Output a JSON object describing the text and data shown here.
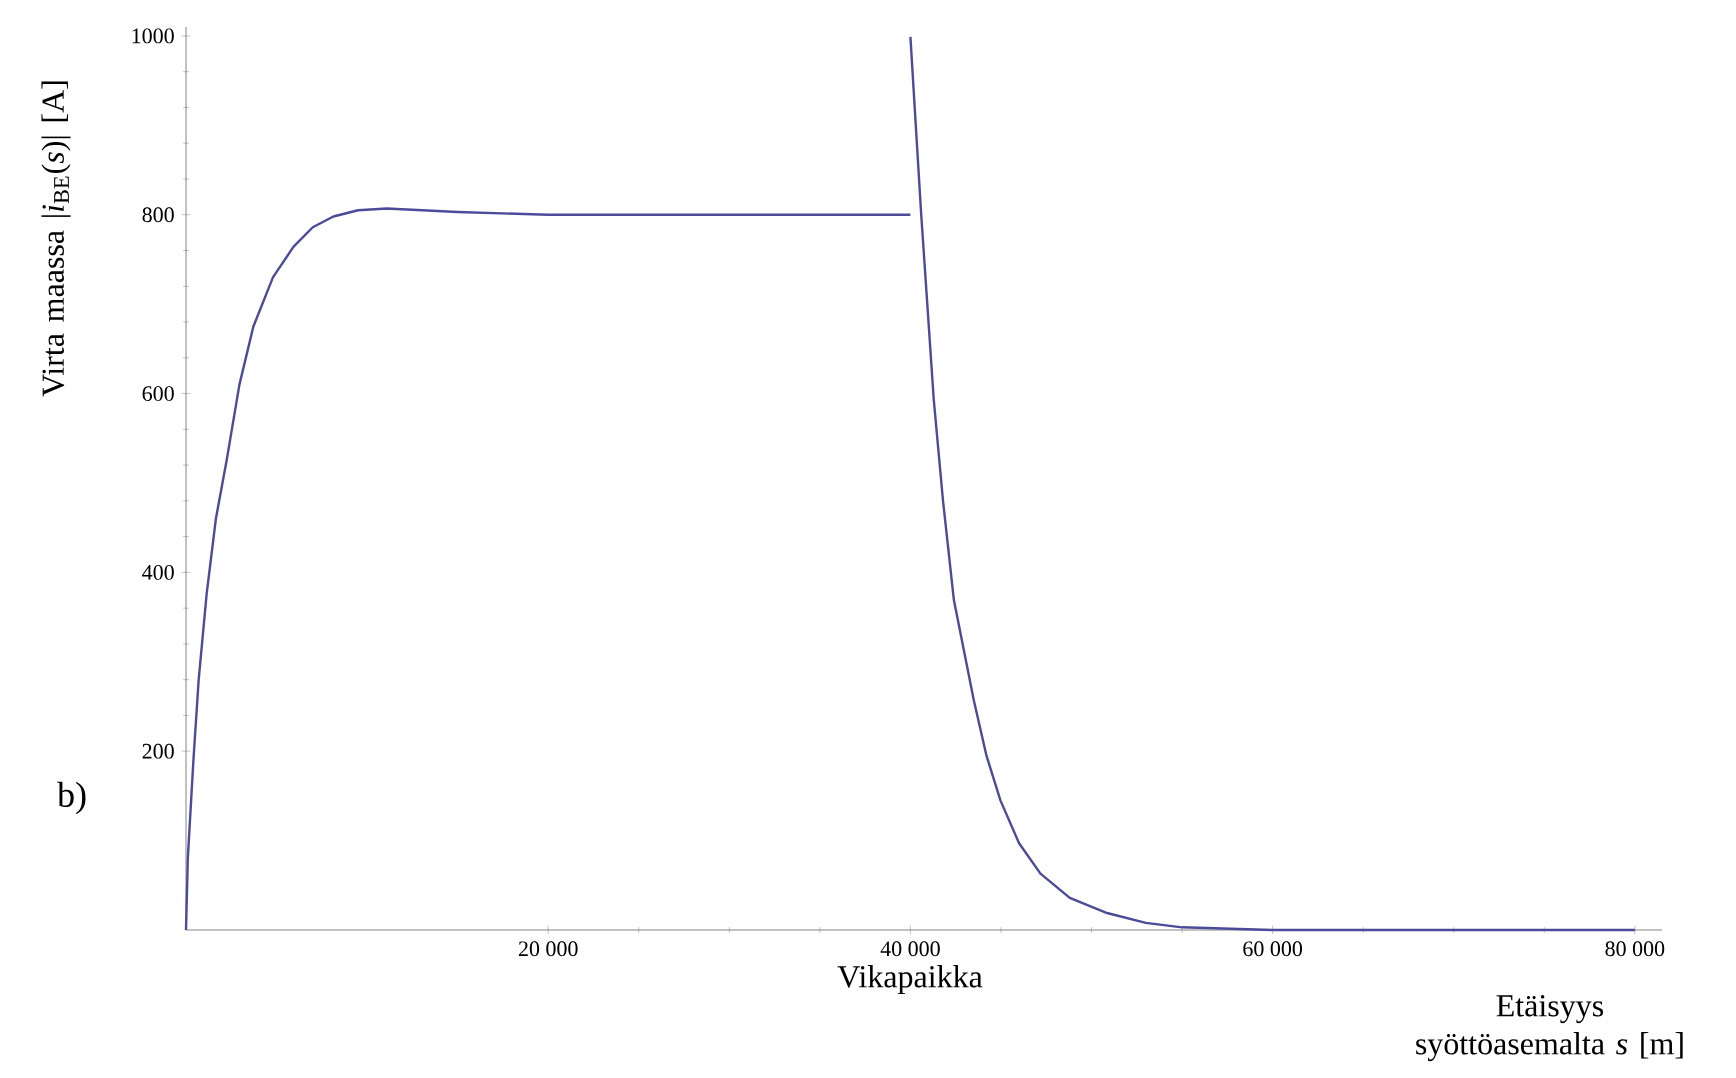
{
  "chart_data": {
    "type": "line",
    "ylabel": "Virta maassa |*i*$_{BE}$(*s*)| [A]",
    "xlabel": "Etäisyys syöttöasemalta *s* [m]",
    "annotations": [
      "b)",
      "Vikapaikka"
    ],
    "xlim": [
      0,
      81500
    ],
    "ylim": [
      0,
      1010
    ],
    "xticks": [
      {
        "value": 20000,
        "label": "20 000"
      },
      {
        "value": 40000,
        "label": "40 000"
      },
      {
        "value": 60000,
        "label": "60 000"
      },
      {
        "value": 80000,
        "label": "80 000"
      }
    ],
    "yticks": [
      200,
      400,
      600,
      800,
      1000
    ],
    "grid": false,
    "marker": "none",
    "line_style": "solid",
    "series": [
      {
        "color": "#4b4b9a",
        "x": [
          0,
          100,
          410,
          700,
          1140,
          1650,
          2250,
          2950,
          3720,
          4800,
          5930,
          7000,
          8140,
          9500,
          11080,
          15000,
          20000,
          30000,
          40000
        ],
        "values": [
          0,
          80,
          190,
          280,
          376,
          460,
          526,
          610,
          675,
          730,
          764,
          786,
          798,
          805,
          807,
          803,
          800,
          800,
          800
        ]
      },
      {
        "color": "#4b4b9a",
        "x": [
          40000,
          40590,
          41290,
          41800,
          42400,
          43500,
          44200,
          44970,
          46000,
          47180,
          48800,
          50860,
          53000,
          55000,
          60000,
          70000,
          80000
        ],
        "values": [
          999,
          802,
          593,
          480,
          369,
          257,
          195,
          145,
          97,
          63,
          36,
          19,
          8,
          3,
          0,
          0,
          0
        ]
      }
    ]
  }
}
